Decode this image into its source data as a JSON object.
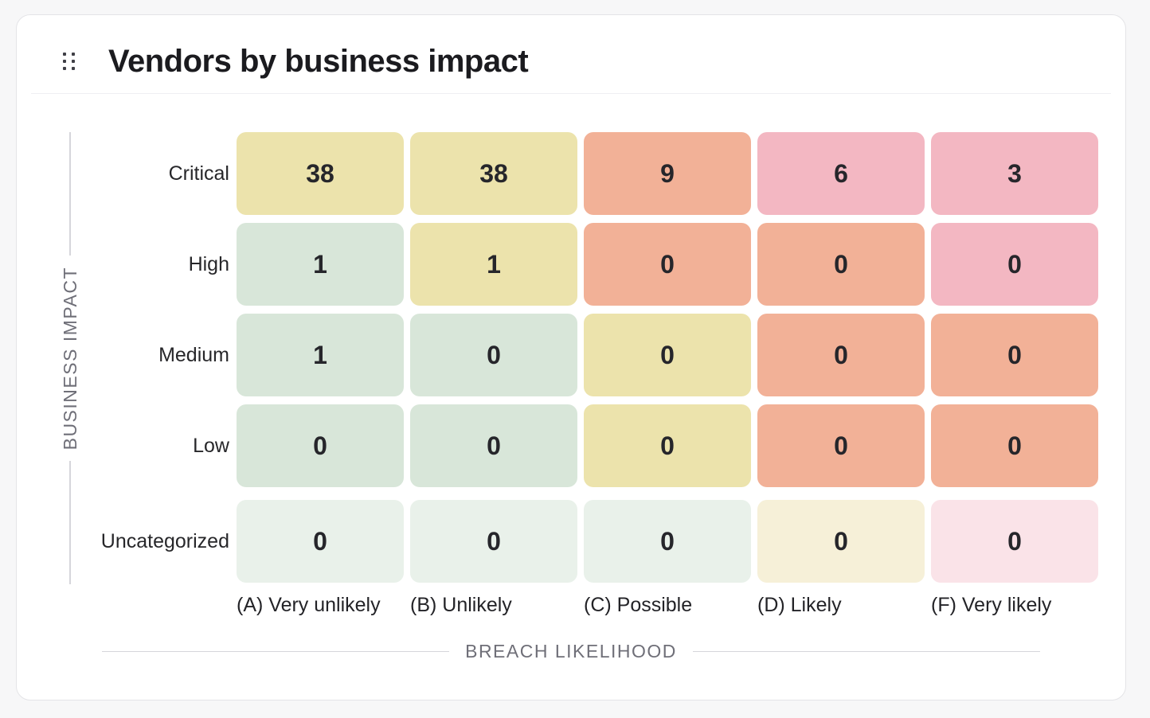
{
  "page": {
    "background": "#F7F7F8"
  },
  "card": {
    "title": "Vendors by business impact",
    "background": "#FFFFFF",
    "border_color": "#E4E4E7"
  },
  "icons": {
    "drag_handle": "grip-dots"
  },
  "palette": {
    "yellow": "#ECE3AC",
    "green": "#D8E6D9",
    "salmon": "#F2B197",
    "pink": "#F3B7C2",
    "light_green": "#E9F1EA",
    "light_cream": "#F6F0D8",
    "light_pink": "#FAE3E8",
    "axis_line": "#D6D6DB",
    "axis_text": "#6F6F78",
    "label_text": "#27272A",
    "value_text": "#26262B"
  },
  "chart_data": {
    "type": "heatmap",
    "title": "Vendors by business impact",
    "xlabel": "BREACH LIKELIHOOD",
    "ylabel": "BUSINESS IMPACT",
    "rows": [
      "Critical",
      "High",
      "Medium",
      "Low",
      "Uncategorized"
    ],
    "columns": [
      "(A) Very unlikely",
      "(B) Unlikely",
      "(C) Possible",
      "(D) Likely",
      "(F) Very likely"
    ],
    "values": [
      [
        38,
        38,
        9,
        6,
        3
      ],
      [
        1,
        1,
        0,
        0,
        0
      ],
      [
        1,
        0,
        0,
        0,
        0
      ],
      [
        0,
        0,
        0,
        0,
        0
      ],
      [
        0,
        0,
        0,
        0,
        0
      ]
    ],
    "cell_colors": [
      [
        "yellow",
        "yellow",
        "salmon",
        "pink",
        "pink"
      ],
      [
        "green",
        "yellow",
        "salmon",
        "salmon",
        "pink"
      ],
      [
        "green",
        "green",
        "yellow",
        "salmon",
        "salmon"
      ],
      [
        "green",
        "green",
        "yellow",
        "salmon",
        "salmon"
      ],
      [
        "light_green",
        "light_green",
        "light_green",
        "light_cream",
        "light_pink"
      ]
    ],
    "legend": "none",
    "grid": false
  }
}
